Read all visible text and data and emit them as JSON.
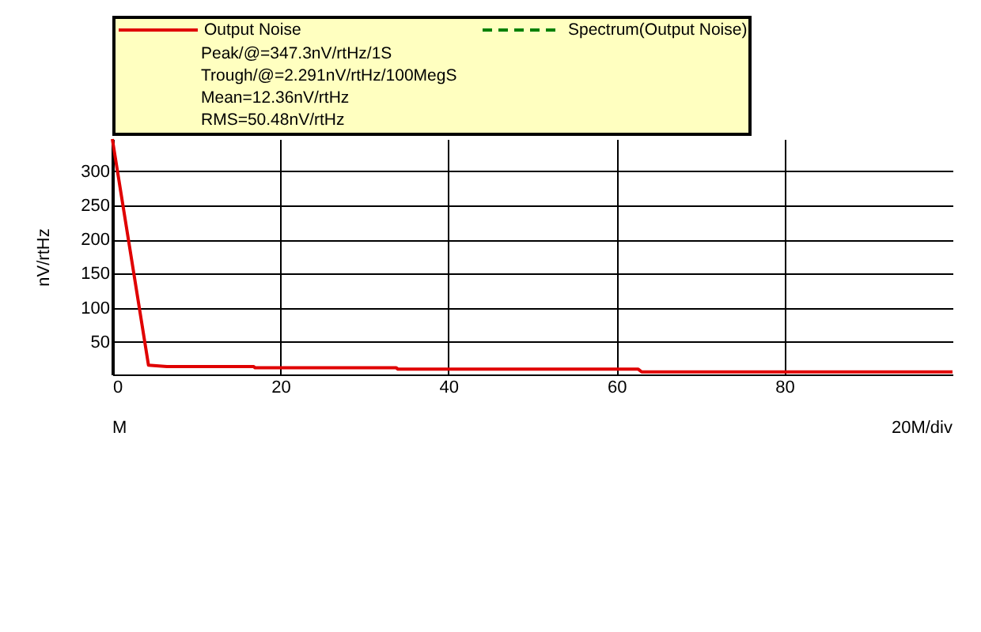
{
  "chart_data": {
    "type": "line",
    "ylabel": "nV/rtHz",
    "x": [
      0,
      4.3,
      6.5,
      16.8,
      17,
      33.8,
      34,
      62.6,
      63,
      100
    ],
    "series": [
      {
        "name": "Output Noise",
        "color": "#e00000",
        "values": [
          347.3,
          16,
          14,
          14,
          12,
          12,
          10,
          10,
          6,
          6
        ]
      },
      {
        "name": "Spectrum(Output Noise)",
        "color": "#008000",
        "line_style": "dashed",
        "values": [
          null,
          null,
          null,
          null,
          null,
          null,
          null,
          null,
          null,
          null
        ]
      }
    ],
    "annotations": [
      "Peak/@=347.3nV/rtHz/1S",
      "Trough/@=2.291nV/rtHz/100MegS",
      "Mean=12.36nV/rtHz",
      "RMS=50.48nV/rtHz",
      "M",
      "20M/div"
    ],
    "xlim": [
      0,
      100
    ],
    "xticks": [
      0,
      20,
      40,
      60,
      80
    ],
    "ylim": [
      2.291,
      347.3
    ],
    "yticks": [
      50,
      100,
      150,
      200,
      250,
      300
    ],
    "grid": true,
    "legend": "top",
    "marker": "none"
  }
}
